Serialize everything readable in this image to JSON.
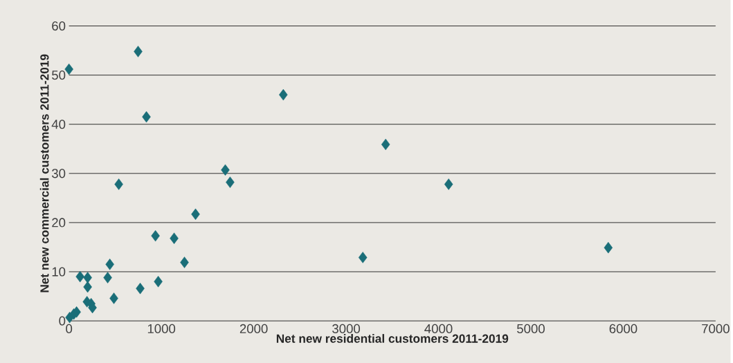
{
  "chart_data": {
    "type": "scatter",
    "xlabel": "Net new residential customers 2011-2019",
    "ylabel": "Net new commercial customers 2011-2019",
    "series": [
      {
        "color": "#1a6e78",
        "x": [
          0,
          748,
          838,
          2320,
          3428,
          4110,
          5838,
          3181,
          1692,
          1744,
          539,
          1370,
          936,
          1138,
          1250,
          966,
          771,
          442,
          419,
          486,
          120,
          202,
          202,
          195,
          240,
          254,
          82,
          52,
          7
        ],
        "values": [
          51.2,
          54.8,
          41.5,
          46,
          35.9,
          27.8,
          14.9,
          12.9,
          30.7,
          28.2,
          27.8,
          21.7,
          17.3,
          16.8,
          11.9,
          8.0,
          6.6,
          11.5,
          8.8,
          4.6,
          9.0,
          8.8,
          6.9,
          3.9,
          3.5,
          2.7,
          1.8,
          1.4,
          0.7
        ]
      }
    ],
    "xlim": [
      0,
      7000
    ],
    "xticks": [
      0,
      1000,
      2000,
      3000,
      4000,
      5000,
      6000,
      7000
    ],
    "ylim": [
      0,
      60
    ],
    "yticks": [
      0,
      10,
      20,
      30,
      40,
      50,
      60
    ],
    "grid": "y",
    "marker": "diamond"
  }
}
